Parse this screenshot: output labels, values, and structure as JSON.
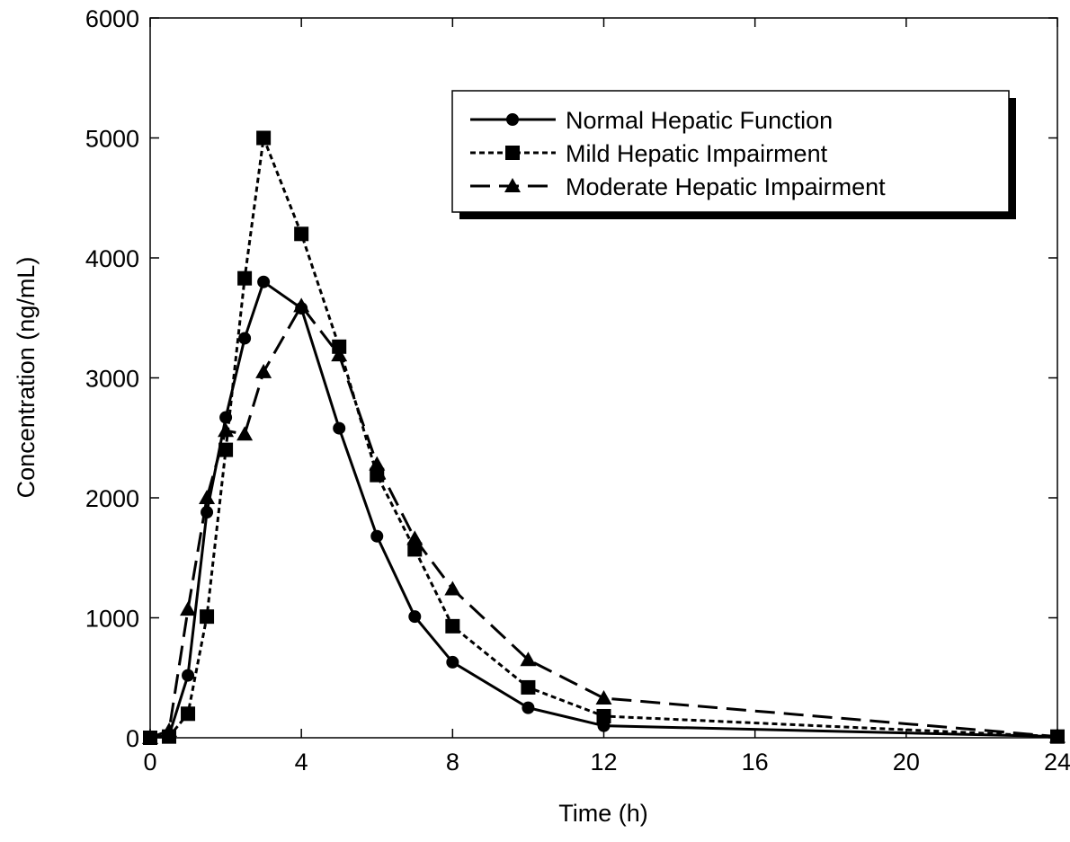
{
  "chart_data": {
    "type": "line",
    "x_label": "Time (h)",
    "y_label": "Concentration (ng/mL)",
    "xlim": [
      0,
      24
    ],
    "xticks": [
      0,
      4,
      8,
      12,
      16,
      20,
      24
    ],
    "ylim": [
      0,
      6000
    ],
    "yticks": [
      0,
      1000,
      2000,
      3000,
      4000,
      5000,
      6000
    ],
    "x": [
      0,
      0.5,
      1,
      1.5,
      2,
      2.5,
      3,
      4,
      5,
      6,
      7,
      8,
      10,
      12,
      24
    ],
    "series": [
      {
        "name": "Normal Hepatic Function",
        "color": "#000000",
        "dash": "solid",
        "marker": "circle",
        "values": [
          0,
          20,
          520,
          1880,
          2670,
          3330,
          3800,
          3580,
          2580,
          1680,
          1010,
          630,
          250,
          100,
          10
        ]
      },
      {
        "name": "Mild Hepatic Impairment",
        "color": "#000000",
        "dash": "dotted",
        "marker": "square",
        "values": [
          0,
          10,
          200,
          1010,
          2400,
          3830,
          5000,
          4200,
          3260,
          2190,
          1570,
          930,
          420,
          180,
          10
        ]
      },
      {
        "name": "Moderate Hepatic Impairment",
        "color": "#000000",
        "dash": "dashed",
        "marker": "triangle",
        "values": [
          0,
          60,
          1070,
          2000,
          2560,
          2530,
          3050,
          3600,
          3190,
          2280,
          1660,
          1240,
          650,
          330,
          10
        ]
      }
    ],
    "legend": "upper-right"
  }
}
